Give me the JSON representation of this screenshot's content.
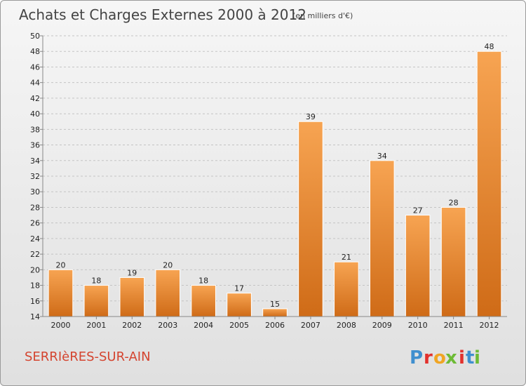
{
  "chart_data": {
    "type": "bar",
    "title": "Achats et Charges Externes 2000 à 2012",
    "subtitle": "(en milliers d'€)",
    "categories": [
      "2000",
      "2001",
      "2002",
      "2003",
      "2004",
      "2005",
      "2006",
      "2007",
      "2008",
      "2009",
      "2010",
      "2011",
      "2012"
    ],
    "values": [
      20,
      18,
      19,
      20,
      18,
      17,
      15,
      39,
      21,
      34,
      27,
      28,
      48
    ],
    "ylim": [
      14,
      50
    ],
    "yticks": [
      14,
      16,
      18,
      20,
      22,
      24,
      26,
      28,
      30,
      32,
      34,
      36,
      38,
      40,
      42,
      44,
      46,
      48,
      50
    ],
    "grid": true,
    "bar_color_light": "#f7a452",
    "bar_color_dark": "#cf6b17"
  },
  "footer": {
    "place": "SERRIèRES-SUR-AIN",
    "logo_letters": [
      "P",
      "r",
      "o",
      "x",
      "i",
      "t",
      "i"
    ],
    "logo_colors": [
      "#3f8fcf",
      "#e2312d",
      "#f0a524",
      "#6dbb36",
      "#e2312d",
      "#3f8fcf",
      "#6dbb36"
    ]
  }
}
